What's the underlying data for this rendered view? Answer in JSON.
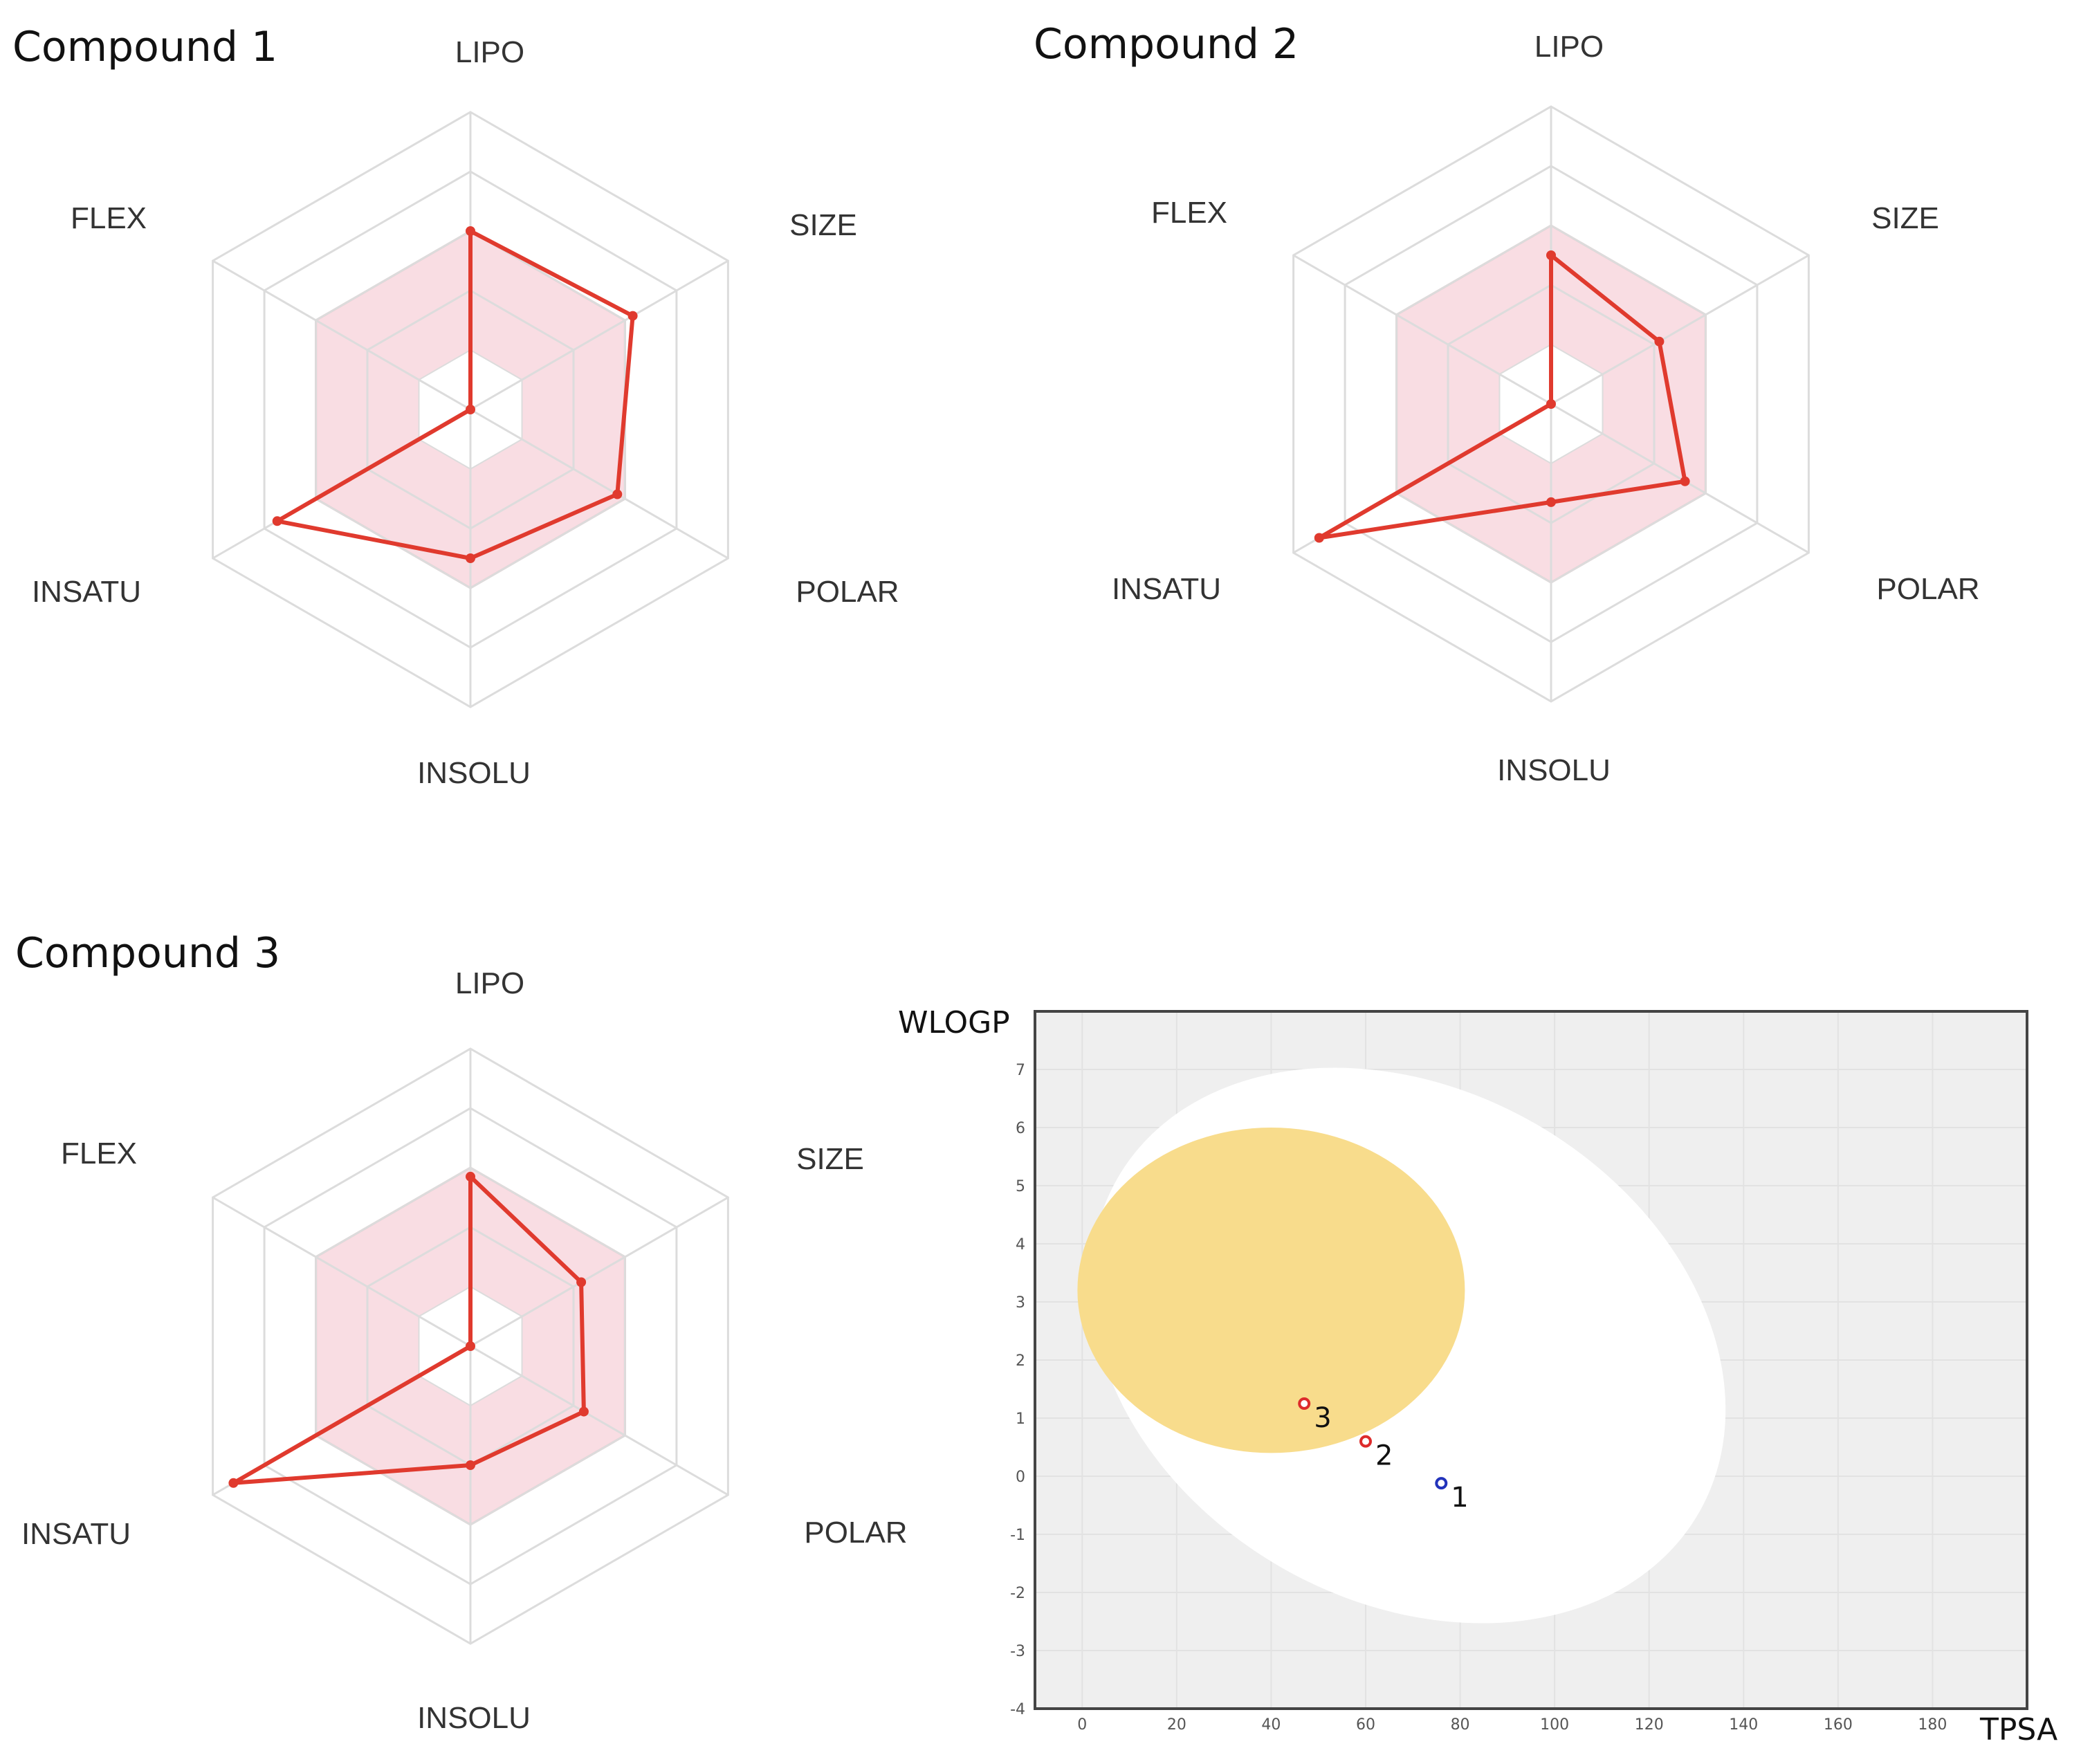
{
  "chart_data": [
    {
      "type": "radar",
      "title": "Compound 1",
      "axes": [
        "LIPO",
        "SIZE",
        "POLAR",
        "INSOLU",
        "INSATU",
        "FLEX"
      ],
      "optimal_range_fraction": 0.6,
      "values": [
        0.6,
        0.63,
        0.57,
        0.5,
        0.75,
        0.0
      ],
      "colors": {
        "line": "#e03a2e",
        "band": "#f9dde3",
        "band_edge": "#e7a3ad",
        "grid": "#dcdcdc"
      }
    },
    {
      "type": "radar",
      "title": "Compound 2",
      "axes": [
        "LIPO",
        "SIZE",
        "POLAR",
        "INSOLU",
        "INSATU",
        "FLEX"
      ],
      "optimal_range_fraction": 0.6,
      "values": [
        0.5,
        0.42,
        0.52,
        0.33,
        0.9,
        0.0
      ],
      "colors": {
        "line": "#e03a2e",
        "band": "#f9dde3",
        "band_edge": "#e7a3ad",
        "grid": "#dcdcdc"
      }
    },
    {
      "type": "radar",
      "title": "Compound 3",
      "axes": [
        "LIPO",
        "SIZE",
        "POLAR",
        "INSOLU",
        "INSATU",
        "FLEX"
      ],
      "optimal_range_fraction": 0.6,
      "values": [
        0.57,
        0.43,
        0.44,
        0.4,
        0.92,
        0.0
      ],
      "colors": {
        "line": "#e03a2e",
        "band": "#f9dde3",
        "band_edge": "#e7a3ad",
        "grid": "#dcdcdc"
      }
    },
    {
      "type": "scatter",
      "title": "",
      "xlabel": "TPSA",
      "ylabel": "WLOGP",
      "xlim": [
        -10,
        200
      ],
      "ylim": [
        -4,
        8
      ],
      "xticks": [
        0,
        20,
        40,
        60,
        80,
        100,
        120,
        140,
        160,
        180
      ],
      "yticks": [
        -4,
        -3,
        -2,
        -1,
        0,
        1,
        2,
        3,
        4,
        5,
        6,
        7
      ],
      "regions": [
        {
          "name": "white",
          "cx": 69,
          "cy": 2.25,
          "rx": 71,
          "ry": 4.4,
          "rotation_deg": 30,
          "color": "#ffffff"
        },
        {
          "name": "yolk",
          "cx": 40,
          "cy": 3.2,
          "rx": 41,
          "ry": 2.8,
          "rotation_deg": 0,
          "color": "#f8dc8c"
        }
      ],
      "points": [
        {
          "label": "1",
          "x": 76,
          "y": -0.12,
          "color": "#2233bb"
        },
        {
          "label": "2",
          "x": 60,
          "y": 0.6,
          "color": "#dd2b2b"
        },
        {
          "label": "3",
          "x": 47,
          "y": 1.25,
          "color": "#dd2b2b"
        }
      ],
      "colors": {
        "background": "#efefef",
        "grid": "#e2e2e2",
        "frame": "#444444"
      }
    }
  ]
}
